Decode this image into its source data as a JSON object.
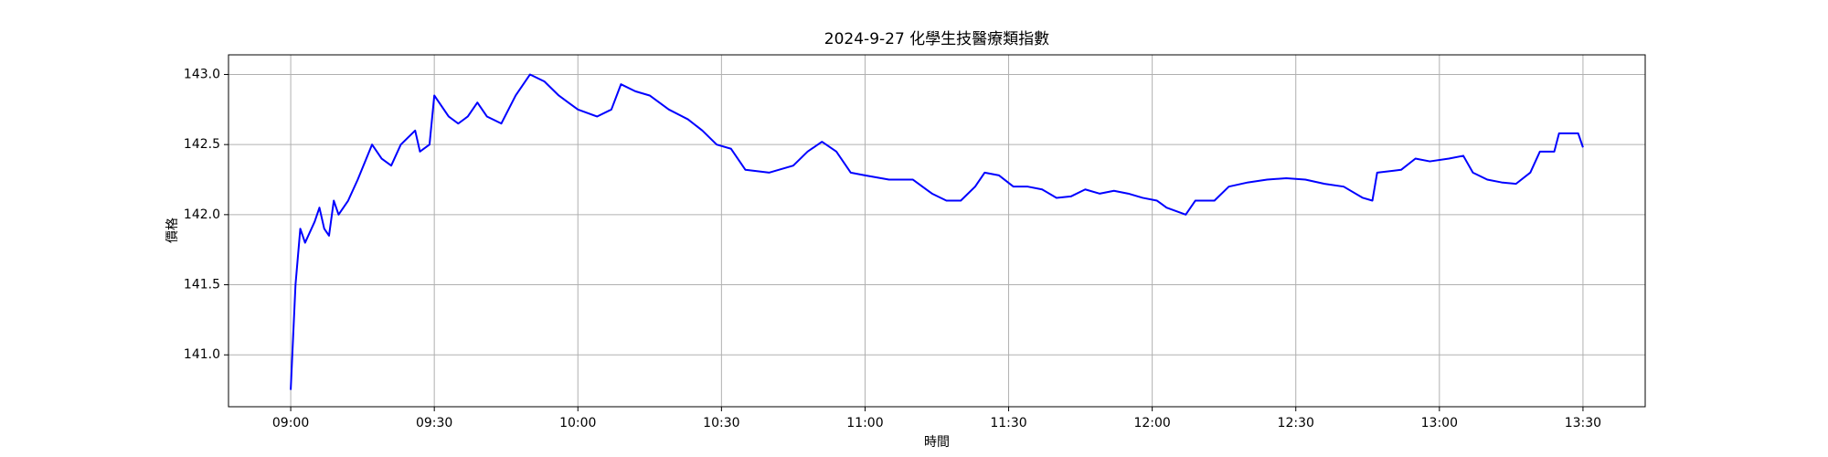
{
  "chart_data": {
    "type": "line",
    "title": "2024-9-27 化學生技醫療類指數",
    "x_label": "時間",
    "y_label": "價格",
    "color": "#0000ff",
    "grid": true,
    "x": [
      "09:00",
      "09:01",
      "09:02",
      "09:03",
      "09:05",
      "09:06",
      "09:07",
      "09:08",
      "09:09",
      "09:10",
      "09:12",
      "09:14",
      "09:17",
      "09:19",
      "09:21",
      "09:23",
      "09:26",
      "09:27",
      "09:29",
      "09:30",
      "09:33",
      "09:35",
      "09:37",
      "09:39",
      "09:41",
      "09:44",
      "09:47",
      "09:50",
      "09:53",
      "09:56",
      "09:58",
      "10:00",
      "10:04",
      "10:07",
      "10:09",
      "10:12",
      "10:15",
      "10:19",
      "10:23",
      "10:26",
      "10:29",
      "10:32",
      "10:35",
      "10:40",
      "10:45",
      "10:48",
      "10:51",
      "10:54",
      "10:57",
      "11:00",
      "11:05",
      "11:10",
      "11:14",
      "11:17",
      "11:20",
      "11:23",
      "11:25",
      "11:28",
      "11:31",
      "11:34",
      "11:37",
      "11:40",
      "11:43",
      "11:46",
      "11:49",
      "11:52",
      "11:55",
      "11:58",
      "12:01",
      "12:03",
      "12:07",
      "12:09",
      "12:13",
      "12:16",
      "12:20",
      "12:24",
      "12:28",
      "12:32",
      "12:36",
      "12:40",
      "12:44",
      "12:46",
      "12:47",
      "12:52",
      "12:55",
      "12:58",
      "13:02",
      "13:05",
      "13:07",
      "13:10",
      "13:13",
      "13:16",
      "13:19",
      "13:21",
      "13:24",
      "13:25",
      "13:29",
      "13:30"
    ],
    "values": [
      140.75,
      141.5,
      141.9,
      141.8,
      141.95,
      142.05,
      141.9,
      141.85,
      142.1,
      142.0,
      142.1,
      142.25,
      142.5,
      142.4,
      142.35,
      142.5,
      142.6,
      142.45,
      142.5,
      142.85,
      142.7,
      142.65,
      142.7,
      142.8,
      142.7,
      142.65,
      142.85,
      143.0,
      142.95,
      142.85,
      142.8,
      142.75,
      142.7,
      142.75,
      142.93,
      142.88,
      142.85,
      142.75,
      142.68,
      142.6,
      142.5,
      142.47,
      142.32,
      142.3,
      142.35,
      142.45,
      142.52,
      142.45,
      142.3,
      142.28,
      142.25,
      142.25,
      142.15,
      142.1,
      142.1,
      142.2,
      142.3,
      142.28,
      142.2,
      142.2,
      142.18,
      142.12,
      142.13,
      142.18,
      142.15,
      142.17,
      142.15,
      142.12,
      142.1,
      142.05,
      142.0,
      142.1,
      142.1,
      142.2,
      142.23,
      142.25,
      142.26,
      142.25,
      142.22,
      142.2,
      142.12,
      142.1,
      142.3,
      142.32,
      142.4,
      142.38,
      142.4,
      142.42,
      142.3,
      142.25,
      142.23,
      142.22,
      142.3,
      142.45,
      142.45,
      142.58,
      142.58,
      142.48
    ],
    "xlim": [
      "08:47",
      "13:43"
    ],
    "xticks": [
      "09:00",
      "09:30",
      "10:00",
      "10:30",
      "11:00",
      "11:30",
      "12:00",
      "12:30",
      "13:00",
      "13:30"
    ],
    "ylim": [
      140.63,
      143.14
    ],
    "yticks": [
      {
        "value": 141,
        "label": "141.0"
      },
      {
        "value": 141.5,
        "label": "141.5"
      },
      {
        "value": 142,
        "label": "142.0"
      },
      {
        "value": 142.5,
        "label": "142.5"
      },
      {
        "value": 143,
        "label": "143.0"
      }
    ]
  }
}
